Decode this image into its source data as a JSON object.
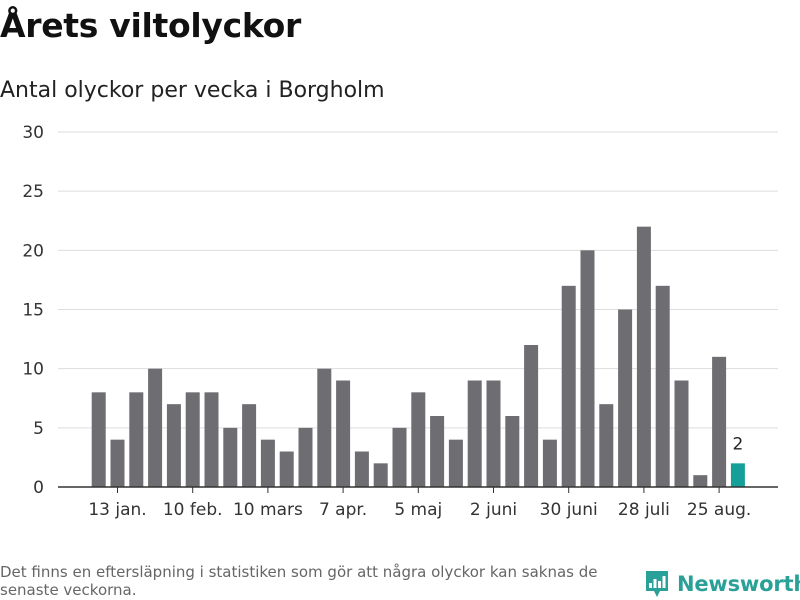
{
  "header": {
    "title": "Årets viltolyckor",
    "subtitle": "Antal olyckor per vecka i Borgholm"
  },
  "footer": {
    "note": "Det finns en eftersläpning i statistiken som gör att några olyckor kan saknas de senaste veckorna.",
    "brand": "Newsworthy"
  },
  "colors": {
    "bar": "#6e6d72",
    "highlight": "#14a098",
    "grid": "#dddddd",
    "axis": "#333333",
    "brand": "#2aa198"
  },
  "chart_data": {
    "type": "bar",
    "title": "Årets viltolyckor",
    "subtitle": "Antal olyckor per vecka i Borgholm",
    "xlabel": "",
    "ylabel": "",
    "ylim": [
      0,
      30
    ],
    "yticks": [
      0,
      5,
      10,
      15,
      20,
      25,
      30
    ],
    "grid": true,
    "values": [
      8,
      4,
      8,
      10,
      7,
      8,
      8,
      5,
      7,
      4,
      3,
      5,
      10,
      9,
      3,
      2,
      5,
      8,
      6,
      4,
      9,
      9,
      6,
      12,
      4,
      17,
      20,
      7,
      15,
      22,
      17,
      9,
      1,
      11,
      2
    ],
    "xtick_labels": [
      {
        "index": 1,
        "label": "13 jan."
      },
      {
        "index": 5,
        "label": "10 feb."
      },
      {
        "index": 9,
        "label": "10 mars"
      },
      {
        "index": 13,
        "label": "7 apr."
      },
      {
        "index": 17,
        "label": "5 maj"
      },
      {
        "index": 21,
        "label": "2 juni"
      },
      {
        "index": 25,
        "label": "30 juni"
      },
      {
        "index": 29,
        "label": "28 juli"
      },
      {
        "index": 33,
        "label": "25 aug."
      }
    ],
    "highlight_index": 34,
    "highlight_label": "2"
  }
}
